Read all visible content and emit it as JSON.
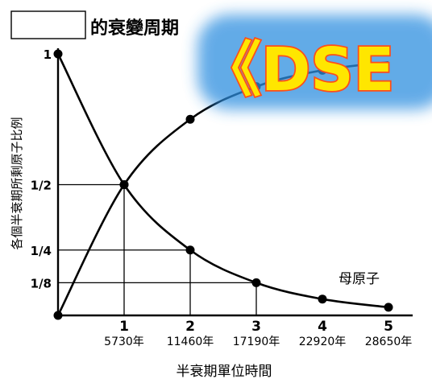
{
  "title": {
    "text": "的衰變周期",
    "box_color": "#ffffff"
  },
  "watermark": {
    "text": "《DSE",
    "fill": "#ffe600",
    "stroke": "#ff4d1a",
    "glow": "#2f8fe0"
  },
  "chart_data": {
    "type": "line",
    "title": "的衰變周期",
    "xlabel": "半衰期單位時間",
    "ylabel": "各個半衰期所剩原子比例",
    "xlim": [
      0,
      5
    ],
    "ylim": [
      0,
      1
    ],
    "grid": false,
    "x_ticks": [
      {
        "value": 1,
        "label": "1",
        "sublabel": "5730年"
      },
      {
        "value": 2,
        "label": "2",
        "sublabel": "11460年"
      },
      {
        "value": 3,
        "label": "3",
        "sublabel": "17190年"
      },
      {
        "value": 4,
        "label": "4",
        "sublabel": "22920年"
      },
      {
        "value": 5,
        "label": "5",
        "sublabel": "28650年"
      }
    ],
    "y_ticks": [
      {
        "value": 1,
        "label": "1"
      },
      {
        "value": 0.5,
        "label": "1/2"
      },
      {
        "value": 0.25,
        "label": "1/4"
      },
      {
        "value": 0.125,
        "label": "1/8"
      }
    ],
    "guide_lines": [
      {
        "x": 1,
        "y": 0.5
      },
      {
        "x": 2,
        "y": 0.25
      },
      {
        "x": 3,
        "y": 0.125
      }
    ],
    "series": [
      {
        "name": "母原子",
        "x": [
          0,
          1,
          2,
          3,
          4,
          5
        ],
        "y": [
          1,
          0.5,
          0.25,
          0.125,
          0.0625,
          0.03125
        ]
      },
      {
        "name": "",
        "x": [
          0,
          1,
          2,
          3,
          4,
          5
        ],
        "y": [
          0,
          0.5,
          0.75,
          0.875,
          0.9375,
          0.96875
        ]
      }
    ]
  }
}
